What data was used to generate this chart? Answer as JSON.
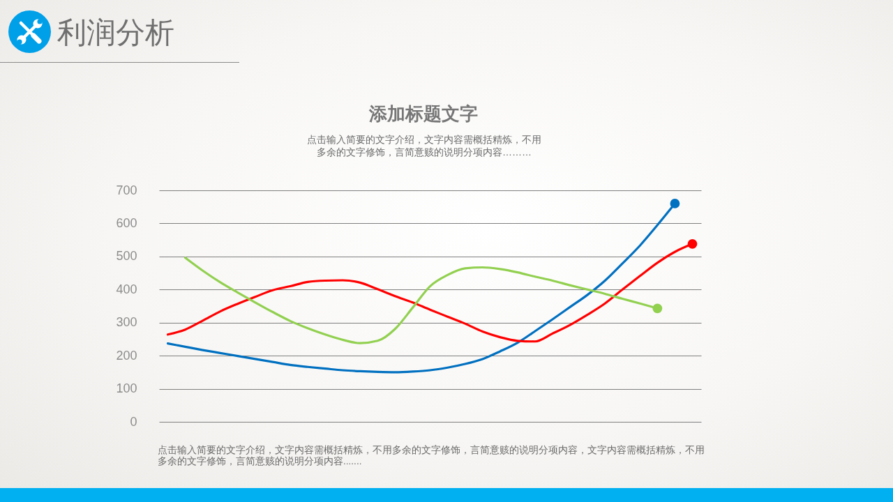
{
  "chart_data": {
    "type": "line",
    "title": "利润分析",
    "subtitle": "添加标题文字",
    "annotations": [
      "点击输入简要的文字介绍，文字内容需概括精炼，不用多余的文字修饰，言简意赅的说明分项内容………",
      "点击输入简要的文字介绍，文字内容需概括精炼，不用多余的文字修饰，言简意赅的说明分项内容，文字内容需概括精炼，不用多余的文字修饰，言简意赅的说明分项内容......."
    ],
    "categories": [
      null,
      null,
      null,
      null,
      null,
      null,
      null,
      null,
      null,
      null,
      null,
      null,
      null,
      null,
      null,
      null,
      null,
      null,
      null,
      null,
      null,
      null,
      null,
      null,
      null,
      null,
      null,
      null,
      null,
      null,
      null
    ],
    "series": [
      {
        "color": "#0070c0",
        "values": [
          237,
          227,
          217,
          208,
          199,
          190,
          181,
          172,
          166,
          161,
          156,
          153,
          151,
          150,
          152,
          156,
          164,
          175,
          190,
          213,
          239,
          274,
          310,
          347,
          384,
          427,
          479,
          533,
          595,
          660,
          null
        ]
      },
      {
        "color": "#ff0000",
        "values": [
          264,
          279,
          306,
          334,
          357,
          378,
          398,
          410,
          423,
          427,
          428,
          421,
          401,
          380,
          361,
          339,
          318,
          297,
          273,
          256,
          245,
          243,
          267,
          293,
          324,
          358,
          400,
          441,
          481,
          514,
          538
        ]
      },
      {
        "color": "#92d050",
        "values": [
          null,
          496,
          457,
          422,
          391,
          361,
          332,
          305,
          283,
          264,
          248,
          238,
          245,
          281,
          345,
          410,
          444,
          464,
          467,
          462,
          452,
          439,
          427,
          413,
          400,
          387,
          372,
          358,
          343,
          null,
          null
        ]
      },
      {
        "type": "scatter",
        "color": "#0070c0",
        "values": [
          null,
          null,
          null,
          null,
          null,
          null,
          null,
          null,
          null,
          null,
          null,
          null,
          null,
          null,
          null,
          null,
          null,
          null,
          null,
          null,
          null,
          null,
          null,
          null,
          null,
          null,
          null,
          null,
          null,
          660,
          null
        ]
      },
      {
        "type": "scatter",
        "color": "#ff0000",
        "values": [
          null,
          null,
          null,
          null,
          null,
          null,
          null,
          null,
          null,
          null,
          null,
          null,
          null,
          null,
          null,
          null,
          null,
          null,
          null,
          null,
          null,
          null,
          null,
          null,
          null,
          null,
          null,
          null,
          null,
          null,
          538
        ]
      },
      {
        "type": "scatter",
        "color": "#92d050",
        "values": [
          null,
          null,
          null,
          null,
          null,
          null,
          null,
          null,
          null,
          null,
          null,
          null,
          null,
          null,
          null,
          null,
          null,
          null,
          null,
          null,
          null,
          null,
          null,
          null,
          null,
          null,
          null,
          null,
          343,
          null,
          null
        ]
      }
    ],
    "ylim": [
      0,
      700
    ],
    "yticks": [
      0,
      100,
      200,
      300,
      400,
      500,
      600,
      700
    ],
    "grid": "y",
    "tick_labels": "y"
  }
}
